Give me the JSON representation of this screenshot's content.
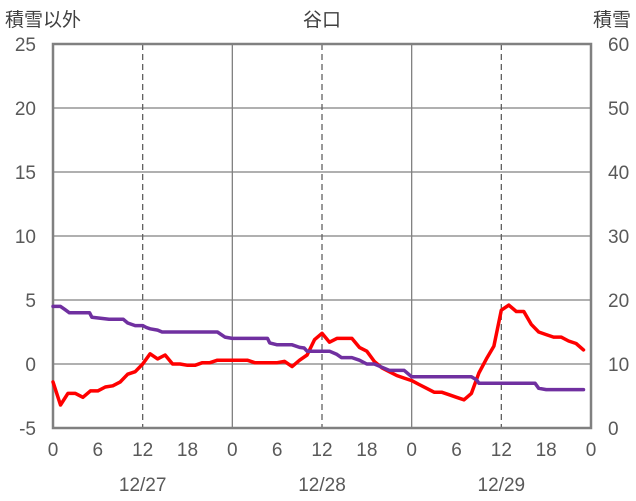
{
  "chart_data": {
    "type": "line",
    "title": "谷口",
    "left_axis_label": "積雪以外",
    "right_axis_label": "積雪",
    "left_ylim": [
      -5,
      25
    ],
    "right_ylim": [
      0,
      60
    ],
    "left_ticks": [
      "25",
      "20",
      "15",
      "10",
      "5",
      "0",
      "-5"
    ],
    "right_ticks": [
      "60",
      "50",
      "40",
      "30",
      "20",
      "10",
      "0"
    ],
    "hour_ticks": [
      "0",
      "6",
      "12",
      "18",
      "0",
      "6",
      "12",
      "18",
      "0",
      "6",
      "12",
      "18",
      "0"
    ],
    "date_labels": [
      {
        "text": "12/27",
        "hour": 12
      },
      {
        "text": "12/28",
        "hour": 36
      },
      {
        "text": "12/29",
        "hour": 60
      }
    ],
    "xlim": [
      0,
      72
    ],
    "grid": {
      "solid_every_hours": 24,
      "dashed_at_hours": [
        12,
        36,
        60
      ]
    },
    "colors": {
      "red_series": "#ff0000",
      "purple_series": "#7030a0",
      "frame": "#808080",
      "grid": "#808080"
    },
    "series": [
      {
        "axis": "left",
        "color": "#ff0000",
        "x": [
          0,
          1,
          2,
          3,
          4,
          5,
          6,
          7,
          8,
          9,
          10,
          11,
          12,
          13,
          14,
          15,
          16,
          17,
          18,
          19,
          20,
          21,
          22,
          23,
          24,
          25,
          26,
          27,
          28,
          29,
          30,
          31,
          32,
          33,
          34,
          35,
          36,
          37,
          38,
          39,
          40,
          41,
          42,
          43,
          44,
          45,
          46,
          47,
          48,
          49,
          50,
          51,
          52,
          53,
          54,
          55,
          56,
          57,
          58,
          59,
          60,
          61,
          62,
          63,
          64,
          65,
          66,
          67,
          68,
          69,
          70,
          71
        ],
        "values": [
          -1.4,
          -3.2,
          -2.3,
          -2.3,
          -2.6,
          -2.1,
          -2.1,
          -1.8,
          -1.7,
          -1.4,
          -0.8,
          -0.6,
          0,
          0.8,
          0.4,
          0.7,
          0,
          0,
          -0.1,
          -0.1,
          0.1,
          0.1,
          0.3,
          0.3,
          0.3,
          0.3,
          0.3,
          0.1,
          0.1,
          0.1,
          0.1,
          0.2,
          -0.2,
          0.3,
          0.7,
          1.9,
          2.4,
          1.7,
          2,
          2,
          2,
          1.3,
          1,
          0.2,
          -0.3,
          -0.6,
          -0.9,
          -1.1,
          -1.3,
          -1.6,
          -1.9,
          -2.2,
          -2.2,
          -2.4,
          -2.6,
          -2.8,
          -2.3,
          -0.7,
          0.4,
          1.4,
          4.2,
          4.6,
          4.1,
          4.1,
          3.1,
          2.5,
          2.3,
          2.1,
          2.1,
          1.8,
          1.6,
          1.1
        ]
      },
      {
        "axis": "right",
        "color": "#7030a0",
        "x": [
          0,
          1,
          1.6,
          2.2,
          4,
          4.9,
          5.2,
          7.5,
          8,
          9,
          9.4,
          10,
          11,
          12,
          12.5,
          13,
          14,
          14.6,
          15,
          16,
          17,
          18,
          18.6,
          19,
          20,
          21,
          21.5,
          22,
          23,
          24,
          24.6,
          25,
          26,
          27,
          28,
          28.7,
          29,
          30,
          31,
          32,
          33,
          33.6,
          34,
          35,
          36,
          37,
          38,
          38.6,
          39,
          40,
          41,
          42,
          42.6,
          43,
          44,
          45,
          46,
          47,
          48,
          49,
          50,
          51,
          52,
          53,
          54,
          55,
          56,
          56.7,
          57,
          58,
          59,
          60,
          61,
          62,
          63,
          64,
          64.5,
          65,
          66,
          67,
          68,
          69,
          70,
          71
        ],
        "values": [
          19,
          19,
          18.5,
          18,
          18,
          18,
          17.3,
          17,
          17,
          17,
          17,
          16.4,
          16,
          16,
          15.7,
          15.5,
          15.3,
          15,
          15,
          15,
          15,
          15,
          15,
          15,
          15,
          15,
          15,
          15,
          14.2,
          14,
          14,
          14,
          14,
          14,
          14,
          14,
          13.3,
          13,
          13,
          13,
          12.6,
          12.5,
          12,
          12,
          12,
          12,
          11.5,
          11,
          11,
          11,
          10.6,
          10,
          10,
          10,
          9.5,
          9,
          9,
          9,
          8,
          8,
          8,
          8,
          8,
          8,
          8,
          8,
          8,
          7.5,
          7,
          7,
          7,
          7,
          7,
          7,
          7,
          7,
          7,
          6.2,
          6,
          6,
          6,
          6,
          6,
          6
        ]
      }
    ]
  }
}
